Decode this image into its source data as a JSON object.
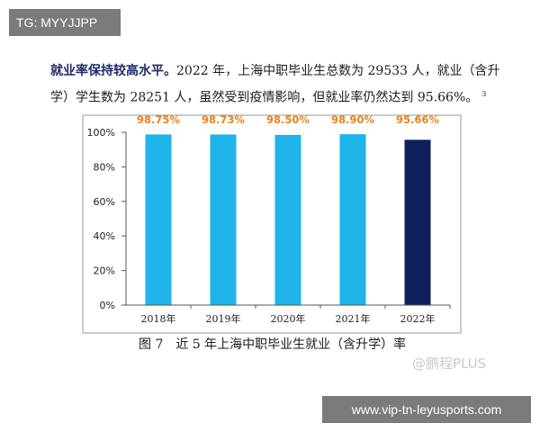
{
  "tags": {
    "top": "TG: MYYJJPP",
    "bottom": "www.vip-tn-leyusports.com"
  },
  "paragraph": {
    "lead": "就业率保持较高水平。",
    "body": "2022 年，上海中职毕业生总数为 29533 人，就业（含升学）学生数为 28251 人，虽然受到疫情影响，但就业率仍然达到 95.66%。",
    "footnote": "3"
  },
  "watermark": "@鹏程PLUS",
  "chart_data": {
    "type": "bar",
    "title": "图 7　近 5 年上海中职毕业生就业（含升学）率",
    "categories": [
      "2018年",
      "2019年",
      "2020年",
      "2021年",
      "2022年"
    ],
    "values": [
      98.75,
      98.73,
      98.5,
      98.9,
      95.66
    ],
    "data_labels": [
      "98.75%",
      "98.73%",
      "98.50%",
      "98.90%",
      "95.66%"
    ],
    "ylim": [
      0,
      100
    ],
    "yticks": [
      0,
      20,
      40,
      60,
      80,
      100
    ],
    "ytick_labels": [
      "0%",
      "20%",
      "40%",
      "60%",
      "80%",
      "100%"
    ],
    "xlabel": "",
    "ylabel": "",
    "grid": false,
    "colors": {
      "bar": "#1fb4ea",
      "highlight_bar": "#0e1f5c",
      "data_label": "#e8821e",
      "axis": "#555555"
    },
    "highlight_index": 4
  }
}
